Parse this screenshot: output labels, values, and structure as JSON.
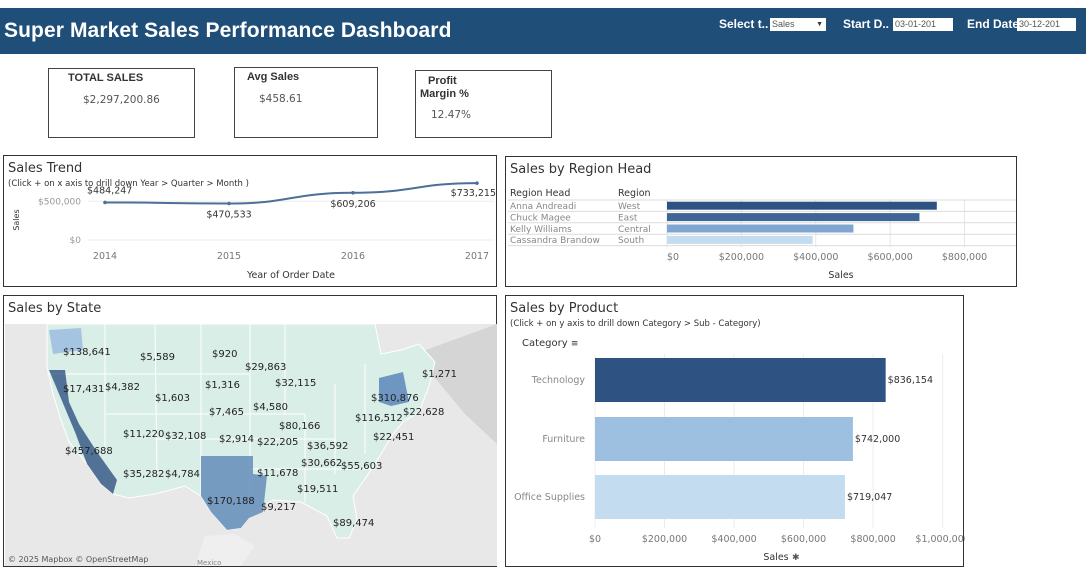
{
  "header": {
    "title": "Super Market Sales Performance Dashboard",
    "select_label": "Select t..",
    "select_value": "Sales",
    "start_label": "Start D..",
    "start_value": "03-01-201",
    "end_label": "End Date",
    "end_value": "30-12-201"
  },
  "kpis": {
    "total_sales": {
      "label": "TOTAL SALES",
      "value": "$2,297,200.86"
    },
    "avg_sales": {
      "label": "Avg Sales",
      "value": "$458.61"
    },
    "profit_margin": {
      "label_line1": "Profit",
      "label_line2": "Margin %",
      "value": "12.47%"
    }
  },
  "colors": {
    "header_bg": "#1f4e79",
    "dark_blue": "#2e5282",
    "mid_blue": "#5b86b8",
    "light_blue": "#9dbfe0",
    "pale_blue": "#c3dcf0"
  },
  "state_panel": {
    "title": "Sales by State",
    "attribution": "© 2025 Mapbox © OpenStreetMap",
    "country_label": "Mexico",
    "labels": [
      "$138,641",
      "$5,589",
      "$920",
      "$29,863",
      "$1,271",
      "$17,431",
      "$4,382",
      "$1,316",
      "$32,115",
      "$1,603",
      "$310,876",
      "$7,465",
      "$4,580",
      "$116,512",
      "$22,628",
      "$80,166",
      "$11,220",
      "$32,108",
      "$2,914",
      "$22,205",
      "$36,592",
      "$22,451",
      "$457,688",
      "$30,662",
      "$55,603",
      "$35,282",
      "$4,784",
      "$11,678",
      "$19,511",
      "$170,188",
      "$9,217",
      "$89,474"
    ]
  },
  "chart_data": [
    {
      "type": "line",
      "title": "Sales Trend",
      "subtitle": "(Click + on x axis to drill down Year > Quarter > Month )",
      "xlabel": "Year of Order Date",
      "ylabel": "Sales",
      "x": [
        "2014",
        "2015",
        "2016",
        "2017"
      ],
      "values": [
        484247,
        470533,
        609206,
        733215
      ],
      "data_labels": [
        "$484,247",
        "$470,533",
        "$609,206",
        "$733,215"
      ],
      "yticks": [
        0,
        500000
      ],
      "ytick_labels": [
        "$0",
        "$500,000"
      ],
      "ylim": [
        0,
        800000
      ],
      "color": "#4e6f99"
    },
    {
      "type": "bar",
      "title": "Sales by Region Head",
      "col_headers": [
        "Region Head",
        "Region"
      ],
      "rows": [
        {
          "head": "Anna Andreadi",
          "region": "West",
          "value": 725458
        },
        {
          "head": "Chuck Magee",
          "region": "East",
          "value": 678781
        },
        {
          "head": "Kelly Williams",
          "region": "Central",
          "value": 501240
        },
        {
          "head": "Cassandra Brandow",
          "region": "South",
          "value": 391722
        }
      ],
      "colors": [
        "#2e5282",
        "#3d6596",
        "#7fa6d0",
        "#c3dcf0"
      ],
      "xlabel": "Sales",
      "xticks": [
        0,
        200000,
        400000,
        600000,
        800000
      ],
      "xtick_labels": [
        "$0",
        "$200,000",
        "$400,000",
        "$600,000",
        "$800,000"
      ],
      "xlim": [
        0,
        890000
      ]
    },
    {
      "type": "bar",
      "title": "Sales by Product",
      "subtitle": "(Click + on y axis to drill down Category > Sub - Category)",
      "category_header": "Category",
      "categories": [
        "Technology",
        "Furniture",
        "Office Supplies"
      ],
      "values": [
        836154,
        742000,
        719047
      ],
      "data_labels": [
        "$836,154",
        "$742,000",
        "$719,047"
      ],
      "colors": [
        "#2e5282",
        "#9dbfe0",
        "#c3dcf0"
      ],
      "xlabel": "Sales",
      "xticks": [
        0,
        200000,
        400000,
        600000,
        800000,
        1000000
      ],
      "xtick_labels": [
        "$0",
        "$200,000",
        "$400,000",
        "$600,000",
        "$800,000",
        "$1,000,000"
      ],
      "xlim": [
        0,
        1050000
      ]
    }
  ]
}
